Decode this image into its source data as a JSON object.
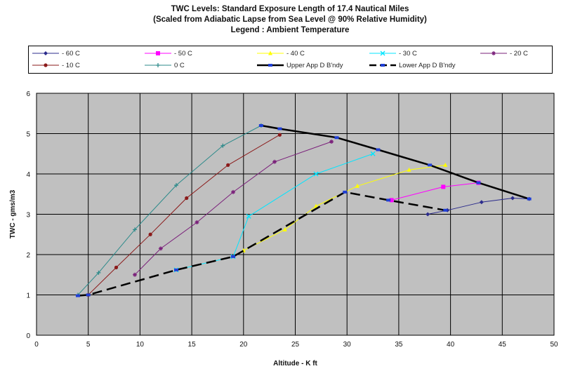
{
  "chart_data": {
    "type": "line",
    "title": "TWC Levels: Standard Exposure Length of 17.4 Nautical Miles",
    "subtitle": "(Scaled from Adiabatic Lapse from Sea Level @ 90% Relative Humidity)",
    "legend_title": "Legend : Ambient Temperature",
    "xlabel": "Altitude - K ft",
    "ylabel": "TWC - gms/m3",
    "xlim": [
      0,
      50
    ],
    "ylim": [
      0,
      6
    ],
    "x_ticks": [
      "0",
      "5",
      "10",
      "15",
      "20",
      "25",
      "30",
      "35",
      "40",
      "45",
      "50"
    ],
    "y_ticks": [
      "0",
      "1",
      "2",
      "3",
      "4",
      "5",
      "6"
    ],
    "grid": true,
    "plot_background": "#c0c0c0",
    "legend_position": "top",
    "series": [
      {
        "name": "- 60 C",
        "color": "#2b2b8c",
        "marker": "diamond",
        "width": 1,
        "dash": "none",
        "points": [
          [
            37.8,
            3.0
          ],
          [
            39.7,
            3.1
          ],
          [
            43.0,
            3.3
          ],
          [
            46.0,
            3.4
          ],
          [
            47.6,
            3.38
          ]
        ]
      },
      {
        "name": "- 50 C",
        "color": "#ff00ff",
        "marker": "square",
        "width": 1,
        "dash": "none",
        "points": [
          [
            34.3,
            3.35
          ],
          [
            39.3,
            3.68
          ],
          [
            42.7,
            3.78
          ]
        ]
      },
      {
        "name": "- 40 C",
        "color": "#ffff00",
        "marker": "triangle",
        "width": 1,
        "dash": "none",
        "points": [
          [
            20.0,
            2.1
          ],
          [
            24.0,
            2.62
          ],
          [
            27.0,
            3.2
          ],
          [
            31.0,
            3.7
          ],
          [
            36.0,
            4.1
          ],
          [
            39.5,
            4.22
          ]
        ]
      },
      {
        "name": "- 30 C",
        "color": "#00e5ff",
        "marker": "x",
        "width": 1,
        "dash": "none",
        "points": [
          [
            13.5,
            1.62
          ],
          [
            19.0,
            1.95
          ],
          [
            20.5,
            2.95
          ],
          [
            27.0,
            4.0
          ],
          [
            32.5,
            4.5
          ]
        ]
      },
      {
        "name": "- 20 C",
        "color": "#7a1f7a",
        "marker": "star",
        "width": 1,
        "dash": "none",
        "points": [
          [
            9.5,
            1.5
          ],
          [
            12.0,
            2.15
          ],
          [
            15.5,
            2.8
          ],
          [
            19.0,
            3.55
          ],
          [
            23.0,
            4.3
          ],
          [
            28.5,
            4.8
          ]
        ]
      },
      {
        "name": "- 10 C",
        "color": "#8b1a1a",
        "marker": "circle",
        "width": 1,
        "dash": "none",
        "points": [
          [
            5.0,
            1.0
          ],
          [
            7.7,
            1.68
          ],
          [
            11.0,
            2.5
          ],
          [
            14.5,
            3.4
          ],
          [
            18.5,
            4.22
          ],
          [
            23.5,
            4.97
          ]
        ]
      },
      {
        "name": "0 C",
        "color": "#2e8b8b",
        "marker": "plus",
        "width": 1,
        "dash": "none",
        "points": [
          [
            4.0,
            1.0
          ],
          [
            6.0,
            1.55
          ],
          [
            9.5,
            2.62
          ],
          [
            13.5,
            3.72
          ],
          [
            18.0,
            4.7
          ],
          [
            21.7,
            5.2
          ]
        ]
      },
      {
        "name": "Upper App D B'ndy",
        "color": "#000000",
        "marker": "square-blue",
        "width": 2.5,
        "dash": "none",
        "points": [
          [
            21.7,
            5.2
          ],
          [
            23.5,
            5.12
          ],
          [
            29.0,
            4.9
          ],
          [
            33.0,
            4.6
          ],
          [
            38.0,
            4.22
          ],
          [
            42.7,
            3.78
          ],
          [
            47.6,
            3.38
          ]
        ]
      },
      {
        "name": "Lower App D B'ndy",
        "color": "#000000",
        "marker": "square-blue",
        "width": 2.5,
        "dash": "14,7",
        "points": [
          [
            4.0,
            0.98
          ],
          [
            5.0,
            1.0
          ],
          [
            13.5,
            1.62
          ],
          [
            19.0,
            1.95
          ],
          [
            29.8,
            3.55
          ],
          [
            34.0,
            3.35
          ],
          [
            39.5,
            3.1
          ]
        ]
      }
    ]
  }
}
